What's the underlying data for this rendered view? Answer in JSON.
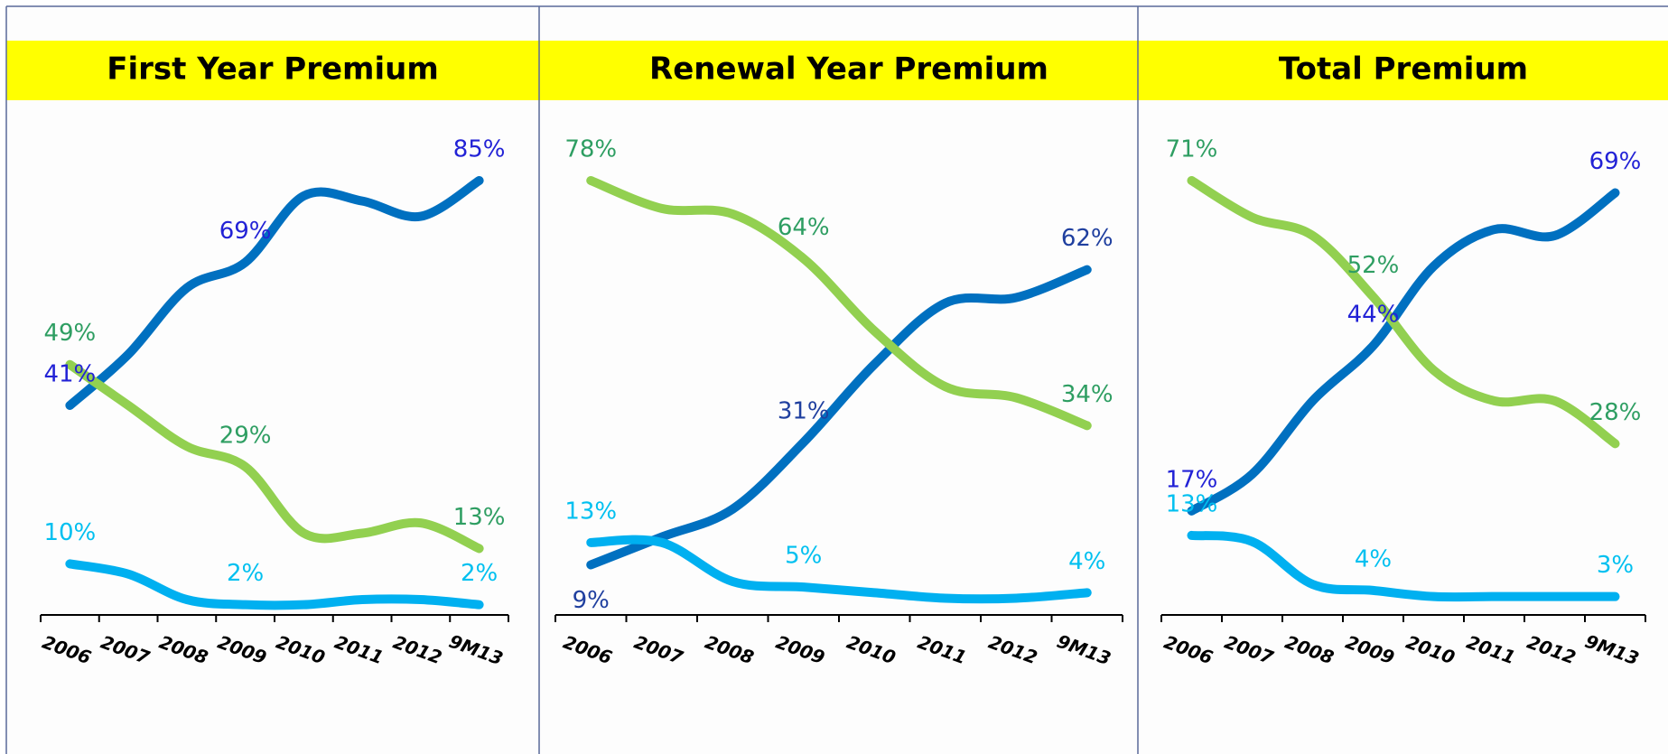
{
  "chart_data": [
    {
      "type": "line",
      "title": "First Year Premium",
      "categories": [
        "2006",
        "2007",
        "2008",
        "2009",
        "2010",
        "2011",
        "2012",
        "9M13"
      ],
      "series": [
        {
          "color": "#0070c0",
          "label_color": "#2222d6",
          "values": [
            41,
            51,
            64,
            69,
            82,
            81,
            78,
            85
          ],
          "value_labels": [
            "41%",
            null,
            null,
            "69%",
            null,
            null,
            null,
            "85%"
          ]
        },
        {
          "color": "#92d050",
          "label_color": "#2e9e62",
          "values": [
            49,
            41,
            33,
            29,
            16,
            16,
            18,
            13
          ],
          "value_labels": [
            "49%",
            null,
            null,
            "29%",
            null,
            null,
            null,
            "13%"
          ]
        },
        {
          "color": "#00b0f0",
          "label_color": "#00c0f0",
          "values": [
            10,
            8,
            3,
            2,
            2,
            3,
            3,
            2
          ],
          "value_labels": [
            "10%",
            null,
            null,
            "2%",
            null,
            null,
            null,
            "2%"
          ]
        }
      ]
    },
    {
      "type": "line",
      "title": "Renewal Year Premium",
      "categories": [
        "2006",
        "2007",
        "2008",
        "2009",
        "2010",
        "2011",
        "2012",
        "9M13"
      ],
      "series": [
        {
          "color": "#0070c0",
          "label_color": "#1f3f9f",
          "values": [
            9,
            14,
            19,
            31,
            45,
            56,
            57,
            62
          ],
          "value_labels": [
            "9%",
            null,
            null,
            "31%",
            null,
            null,
            null,
            "62%"
          ]
        },
        {
          "color": "#92d050",
          "label_color": "#2e9e62",
          "values": [
            78,
            73,
            72,
            64,
            51,
            41,
            39,
            34
          ],
          "value_labels": [
            "78%",
            null,
            null,
            "64%",
            null,
            null,
            null,
            "34%"
          ]
        },
        {
          "color": "#00b0f0",
          "label_color": "#00c0f0",
          "values": [
            13,
            13,
            6,
            5,
            4,
            3,
            3,
            4
          ],
          "value_labels": [
            "13%",
            null,
            null,
            "5%",
            null,
            null,
            null,
            "4%"
          ]
        }
      ]
    },
    {
      "type": "line",
      "title": "Total Premium",
      "categories": [
        "2006",
        "2007",
        "2008",
        "2009",
        "2010",
        "2011",
        "2012",
        "9M13"
      ],
      "series": [
        {
          "color": "#0070c0",
          "label_color": "#2222d6",
          "values": [
            17,
            23,
            35,
            44,
            57,
            63,
            62,
            69
          ],
          "value_labels": [
            "17%",
            null,
            null,
            "44%",
            null,
            null,
            null,
            "69%"
          ]
        },
        {
          "color": "#92d050",
          "label_color": "#2e9e62",
          "values": [
            71,
            65,
            62,
            52,
            40,
            35,
            35,
            28
          ],
          "value_labels": [
            "71%",
            null,
            null,
            "52%",
            null,
            null,
            null,
            "28%"
          ]
        },
        {
          "color": "#00b0f0",
          "label_color": "#00c0f0",
          "values": [
            13,
            12,
            5,
            4,
            3,
            3,
            3,
            3
          ],
          "value_labels": [
            "13%",
            null,
            null,
            "4%",
            null,
            null,
            null,
            "3%"
          ]
        }
      ]
    }
  ]
}
